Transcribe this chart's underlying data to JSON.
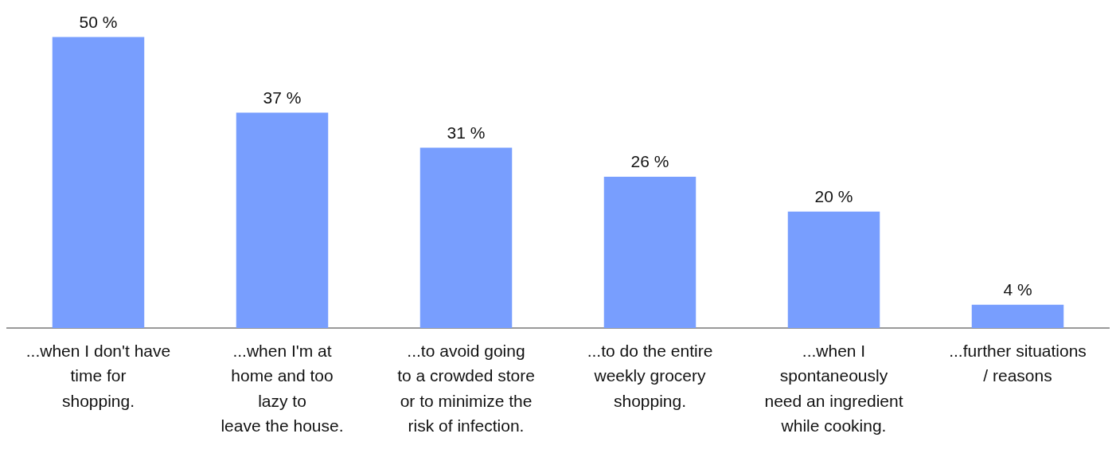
{
  "chart_data": {
    "type": "bar",
    "categories": [
      "...when I don't have\ntime for\nshopping.",
      "...when I'm at\nhome and too\nlazy to\nleave the house.",
      "...to avoid going\nto a crowded store\nor to minimize the\nrisk of infection.",
      "...to do the entire\nweekly grocery\nshopping.",
      "...when I\nspontaneously\nneed an ingredient\nwhile cooking.",
      "...further situations\n/ reasons"
    ],
    "values": [
      50,
      37,
      31,
      26,
      20,
      4
    ],
    "value_labels": [
      "50 %",
      "37 %",
      "31 %",
      "26 %",
      "20 %",
      "4 %"
    ],
    "color": "#789efe",
    "grid": false,
    "legend": false
  }
}
